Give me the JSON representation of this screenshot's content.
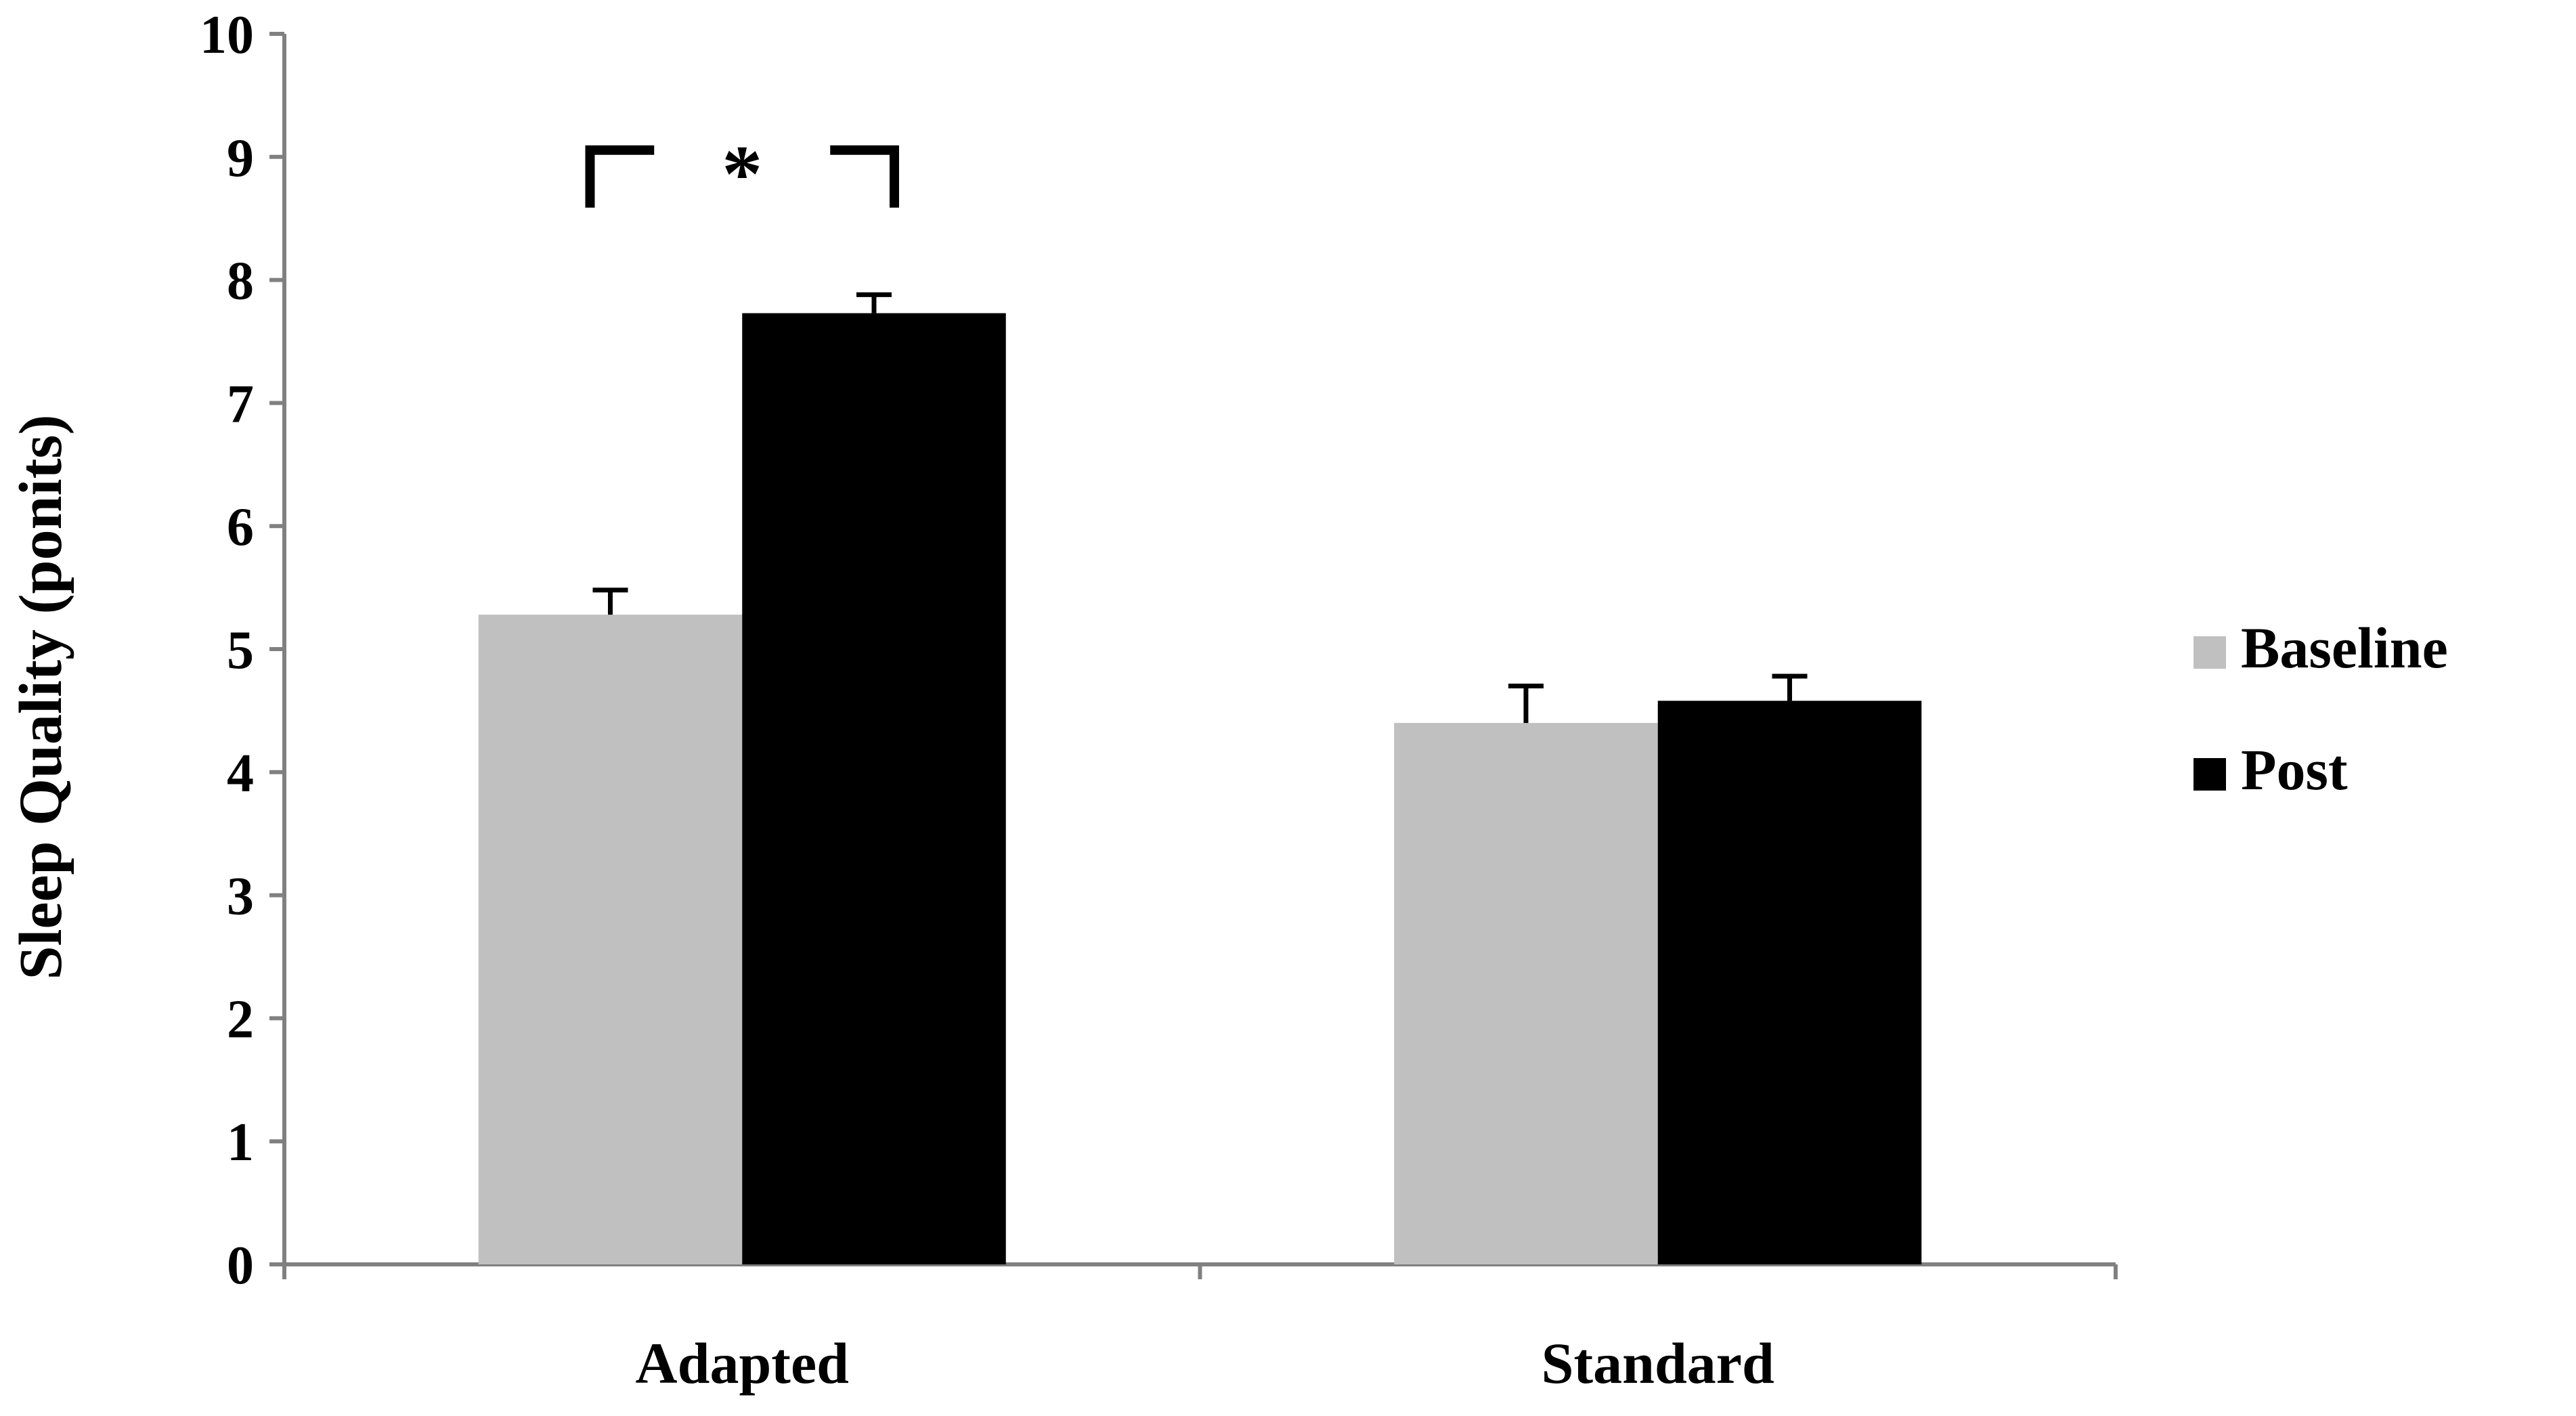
{
  "chart_data": {
    "type": "bar",
    "ylabel": "Sleep Quality (ponits)",
    "ylim": [
      0,
      10
    ],
    "yticks": [
      "0",
      "1",
      "2",
      "3",
      "4",
      "5",
      "6",
      "7",
      "8",
      "9",
      "10"
    ],
    "categories": [
      "Adapted",
      "Standard"
    ],
    "series": [
      {
        "name": "Baseline",
        "color": "#c0c0c0",
        "values": [
          5.28,
          4.4
        ],
        "errors": [
          0.2,
          0.3
        ]
      },
      {
        "name": "Post",
        "color": "#000000",
        "values": [
          7.73,
          4.58
        ],
        "errors": [
          0.15,
          0.2
        ]
      }
    ],
    "legend": "right",
    "grid": false,
    "annotations": [
      {
        "text": "*",
        "category": "Adapted",
        "between": [
          "Baseline",
          "Post"
        ],
        "y": 9.0
      }
    ]
  }
}
